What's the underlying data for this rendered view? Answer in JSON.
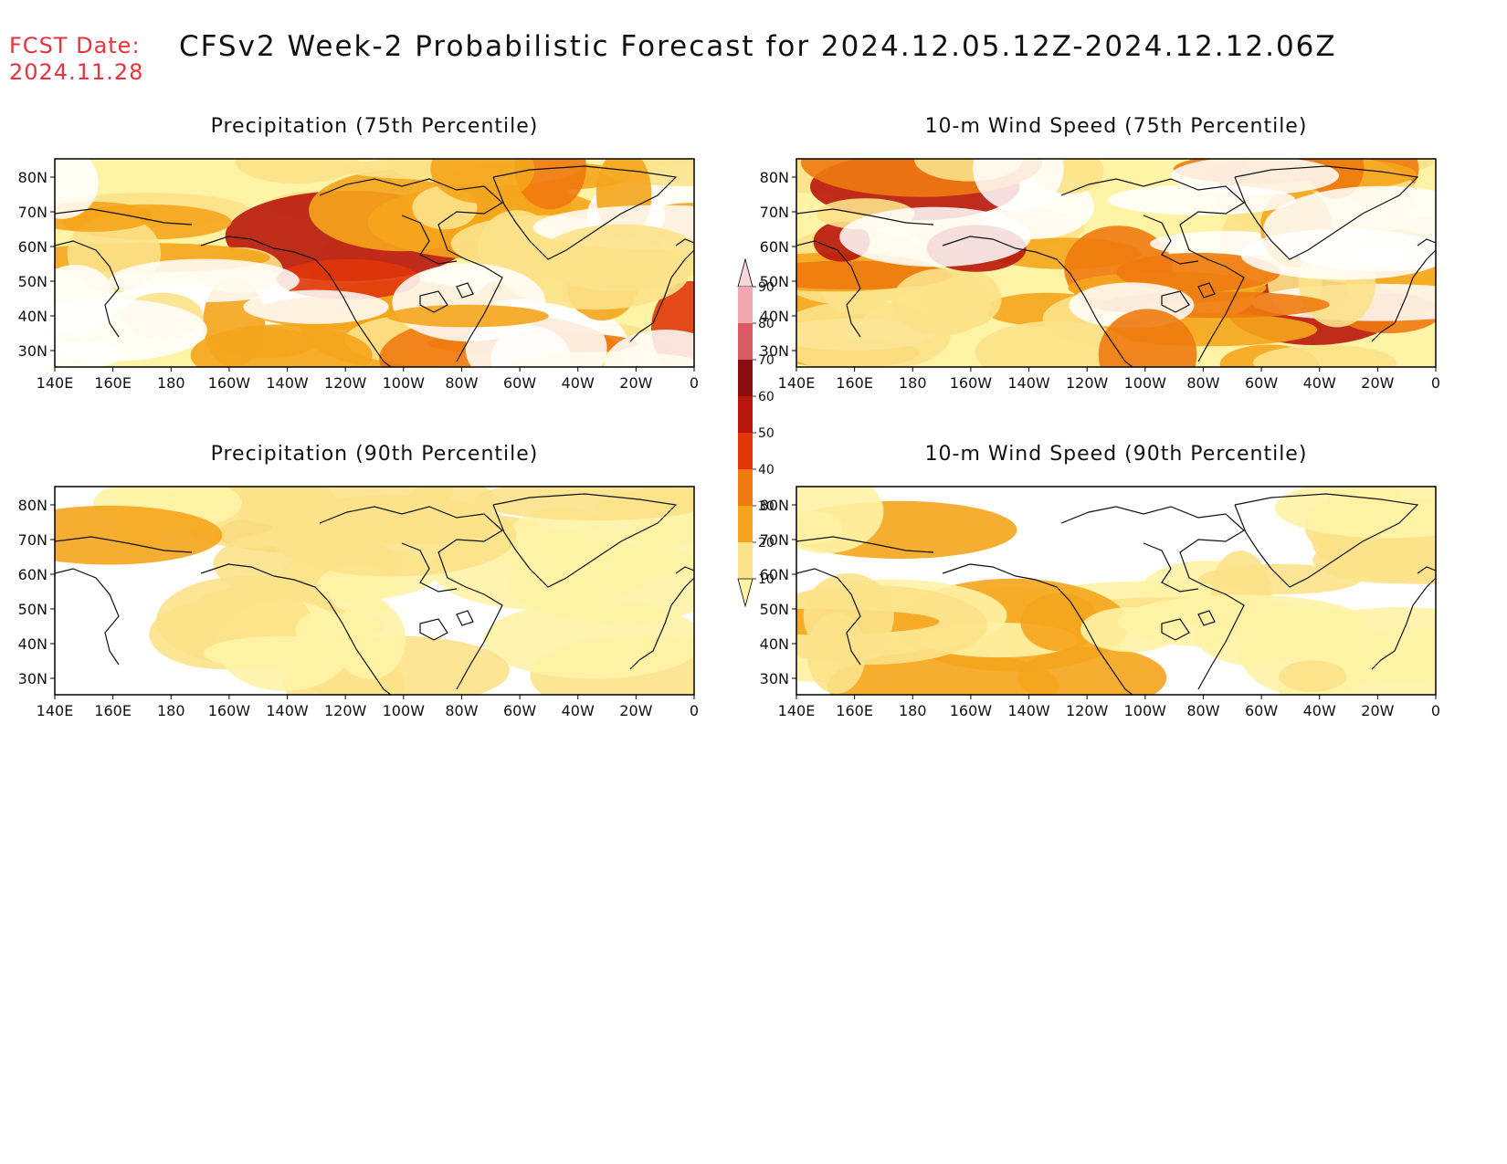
{
  "header": {
    "fcst_label": "FCST Date:",
    "fcst_date": "2024.11.28",
    "title": "CFSv2 Week-2 Probabilistic Forecast for 2024.12.05.12Z-2024.12.12.06Z"
  },
  "map_axes": {
    "lon_ticks": [
      "140E",
      "160E",
      "180",
      "160W",
      "140W",
      "120W",
      "100W",
      "80W",
      "60W",
      "40W",
      "20W",
      "0"
    ],
    "lat_ticks": [
      "80N",
      "70N",
      "60N",
      "50N",
      "40N",
      "30N"
    ]
  },
  "panels": [
    {
      "id": "precip75",
      "title": "Precipitation (75th Percentile)",
      "level": "high"
    },
    {
      "id": "wind75",
      "title": "10-m Wind Speed (75th Percentile)",
      "level": "high"
    },
    {
      "id": "precip90",
      "title": "Precipitation (90th Percentile)",
      "level": "low"
    },
    {
      "id": "wind90",
      "title": "10-m Wind Speed (90th Percentile)",
      "level": "low"
    }
  ],
  "colorbar": {
    "levels": [
      "10",
      "20",
      "30",
      "40",
      "50",
      "60",
      "70",
      "80",
      "90"
    ],
    "colors": [
      "#fff3a6",
      "#fce28a",
      "#f5a51c",
      "#f07a10",
      "#e0360a",
      "#b8160b",
      "#8b0d0d",
      "#d95a62",
      "#f2a6ad",
      "#fbd6da"
    ]
  }
}
